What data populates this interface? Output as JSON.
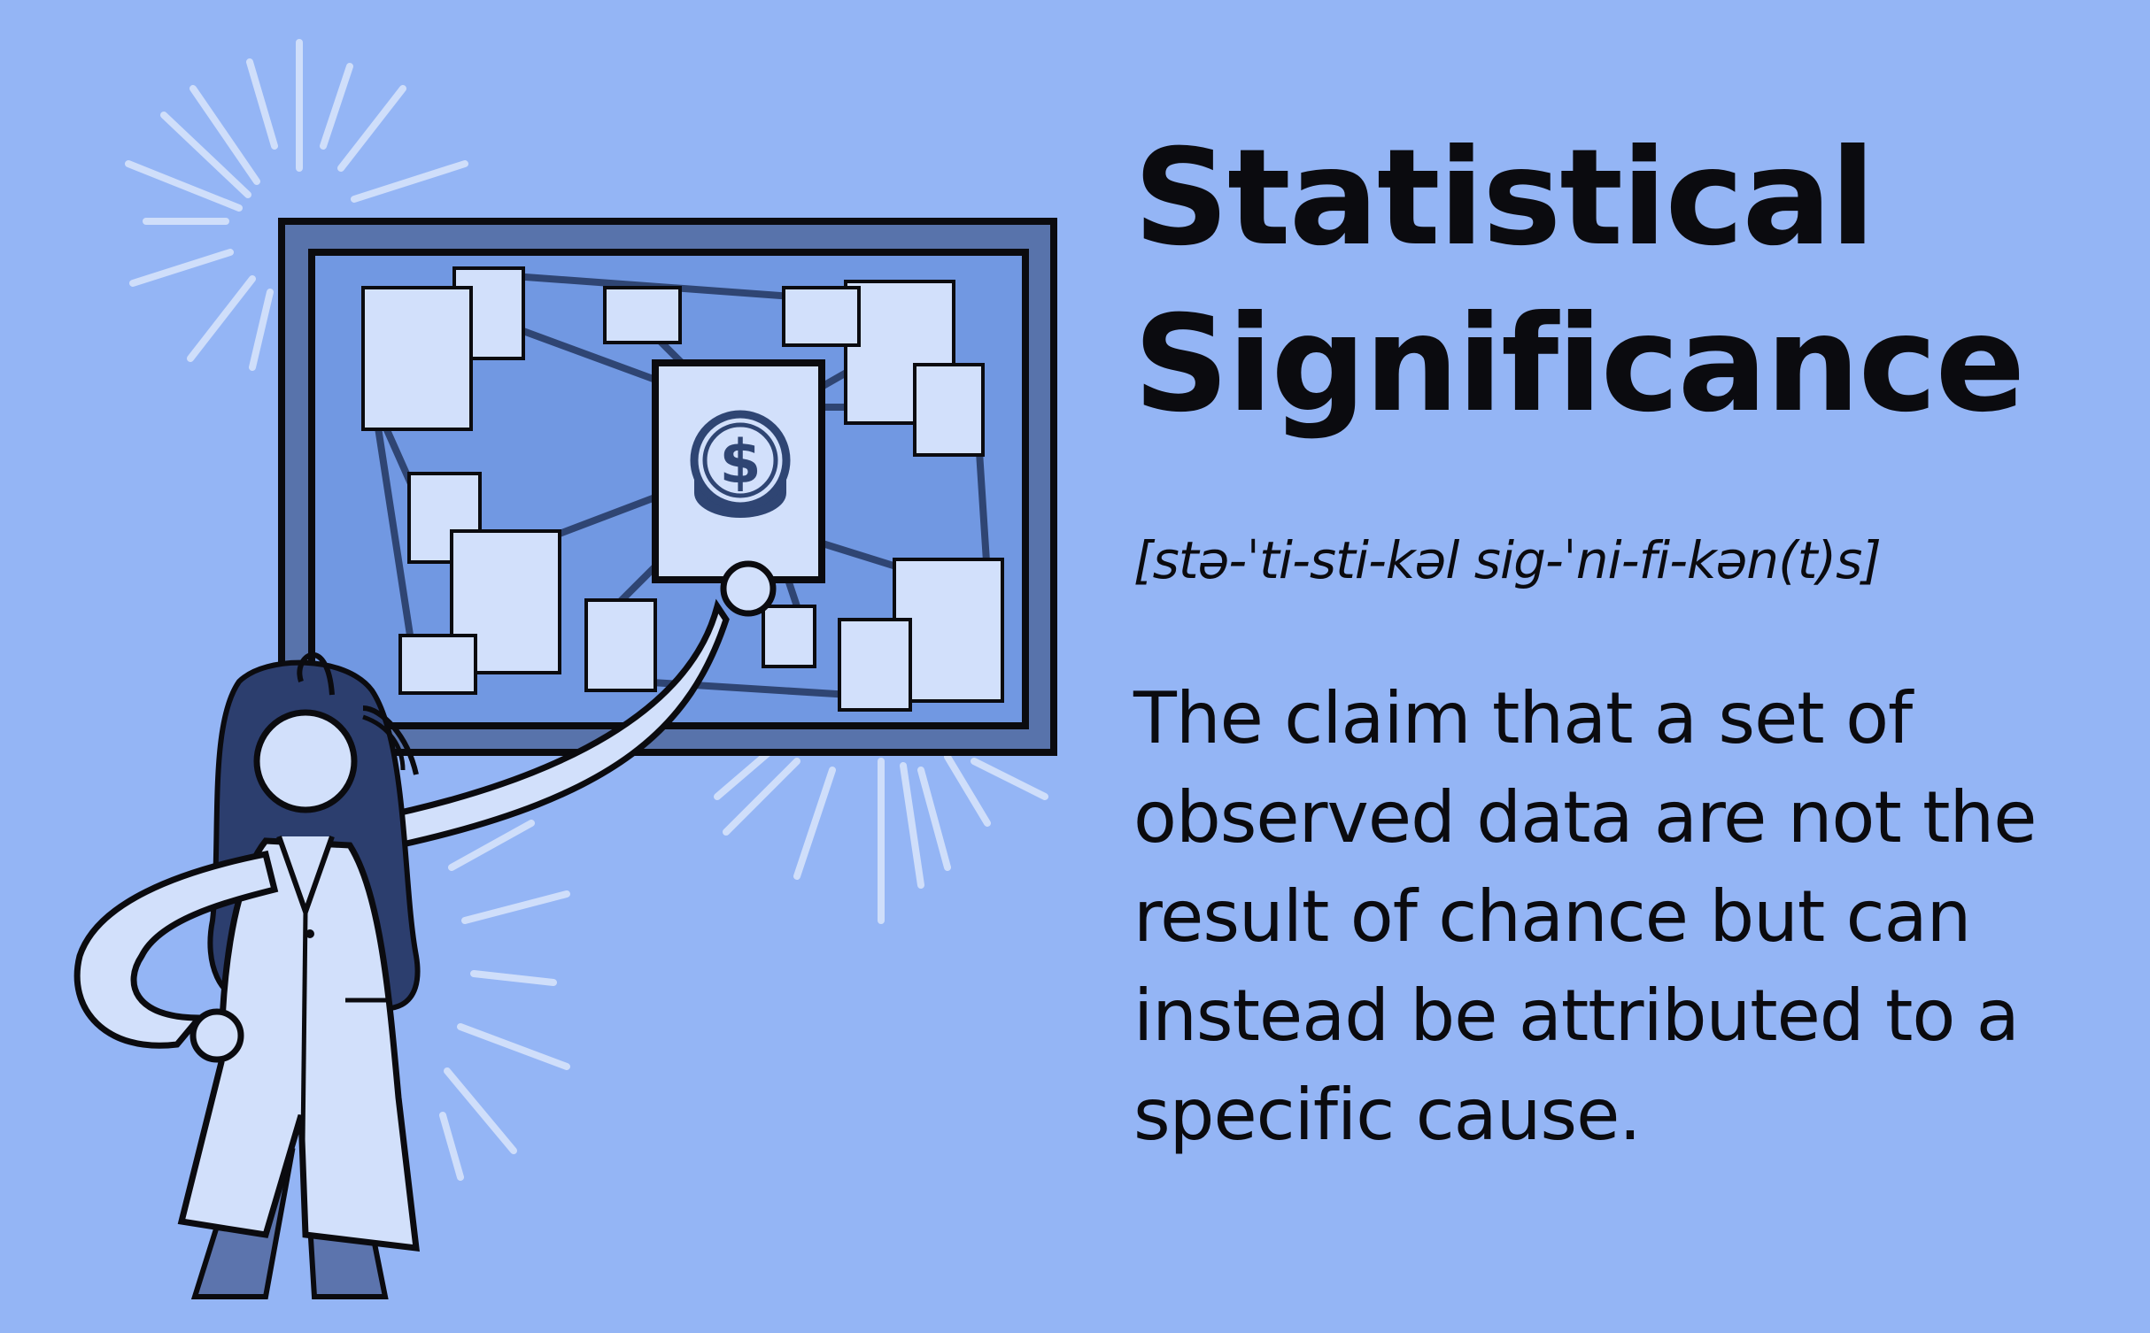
{
  "term": {
    "title_line1": "Statistical",
    "title_line2": "Significance",
    "pronunciation": "[stə-ˈti-sti-kəl sig-ˈni-fi-kən(t)s]",
    "definition": "The claim that a set of observed data are not the result of chance but can instead be attributed to a specific cause."
  },
  "illustration": {
    "description_icon": "dollar-coin-icon",
    "colors": {
      "background": "#94b5f5",
      "board_frame": "#5873ab",
      "board_inner": "#7198e2",
      "paper": "#d2e0fb",
      "ink": "#0b0b0f",
      "hair": "#2c3e6e",
      "pants": "#5c74ad"
    }
  }
}
